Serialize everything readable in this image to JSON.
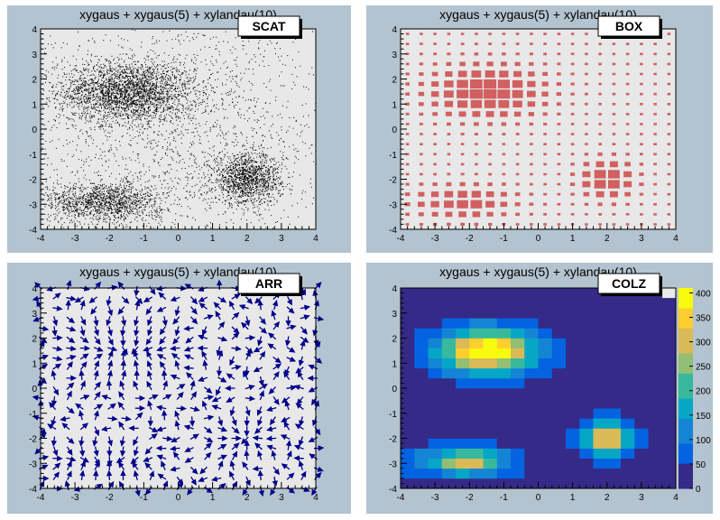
{
  "canvas_bg": "#ffffff",
  "pad_bg": "#b3c3cf",
  "frame_bg": "#e8e8e8",
  "chart_data": [
    {
      "id": "scat",
      "type": "scatter",
      "title": "xygaus + xygaus(5) + xylandau(10)",
      "option_label": "SCAT",
      "xlim": [
        -4,
        4
      ],
      "ylim": [
        -4,
        4
      ],
      "xticks": [
        "-4",
        "-3",
        "-2",
        "-1",
        "0",
        "1",
        "2",
        "3",
        "4"
      ],
      "yticks": [
        "-4",
        "-3",
        "-2",
        "-1",
        "0",
        "1",
        "2",
        "3",
        "4"
      ],
      "color": "#000000",
      "clusters": [
        {
          "x": -1.5,
          "y": 1.5,
          "sx": 1.0,
          "sy": 0.6,
          "n": 2600
        },
        {
          "x": 2.0,
          "y": -2.0,
          "sx": 0.5,
          "sy": 0.5,
          "n": 1300
        },
        {
          "x": -2.2,
          "y": -2.9,
          "sx": 0.9,
          "sy": 0.4,
          "n": 1400
        },
        {
          "x": 0.0,
          "y": 0.0,
          "sx": 2.5,
          "sy": 2.5,
          "n": 2000
        }
      ]
    },
    {
      "id": "box",
      "type": "heatmap",
      "title": "xygaus + xygaus(5) + xylandau(10)",
      "option_label": "BOX",
      "xlim": [
        -4,
        4
      ],
      "ylim": [
        -4,
        4
      ],
      "xticks": [
        "-4",
        "-3",
        "-2",
        "-1",
        "0",
        "1",
        "2",
        "3",
        "4"
      ],
      "yticks": [
        "-4",
        "-3",
        "-2",
        "-1",
        "0",
        "1",
        "2",
        "3",
        "4"
      ],
      "color": "#d16060",
      "bins": 20
    },
    {
      "id": "arr",
      "type": "vector",
      "title": "xygaus + xygaus(5) + xylandau(10)",
      "option_label": "ARR",
      "xlim": [
        -4,
        4
      ],
      "ylim": [
        -4,
        4
      ],
      "xticks": [
        "-4",
        "-3",
        "-2",
        "-1",
        "0",
        "1",
        "2",
        "3",
        "4"
      ],
      "yticks": [
        "-4",
        "-3",
        "-2",
        "-1",
        "0",
        "1",
        "2",
        "3",
        "4"
      ],
      "color": "#00008b",
      "bins": 20
    },
    {
      "id": "colz",
      "type": "heatmap",
      "title": "xygaus + xygaus(5) + xylandau(10)",
      "option_label": "COLZ",
      "xlim": [
        -4,
        4
      ],
      "ylim": [
        -4,
        4
      ],
      "xticks": [
        "-4",
        "-3",
        "-2",
        "-1",
        "0",
        "1",
        "2",
        "3",
        "4"
      ],
      "yticks": [
        "-4",
        "-3",
        "-2",
        "-1",
        "0",
        "1",
        "2",
        "3",
        "4"
      ],
      "bins": 20,
      "zlim": [
        0,
        410
      ],
      "zticks": [
        "0",
        "50",
        "100",
        "150",
        "200",
        "250",
        "300",
        "350",
        "400"
      ],
      "palette": [
        "#352a87",
        "#0363e1",
        "#1485d4",
        "#06a7c6",
        "#38b99e",
        "#92bf73",
        "#d9ba56",
        "#fcce2e",
        "#f9fb0e"
      ]
    }
  ]
}
